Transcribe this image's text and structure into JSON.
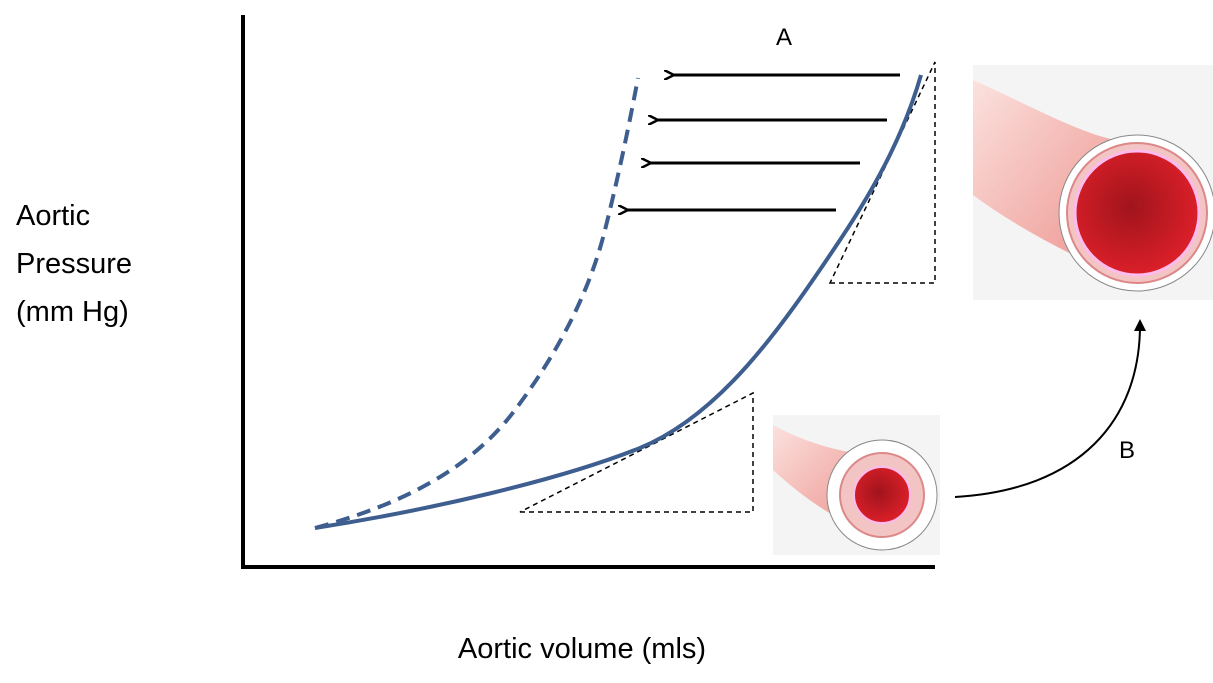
{
  "y_axis_label": [
    "Aortic",
    "Pressure",
    "(mm Hg)"
  ],
  "x_axis_label": "Aortic volume (mls)",
  "annotations": {
    "a": "A",
    "b": "B"
  }
}
